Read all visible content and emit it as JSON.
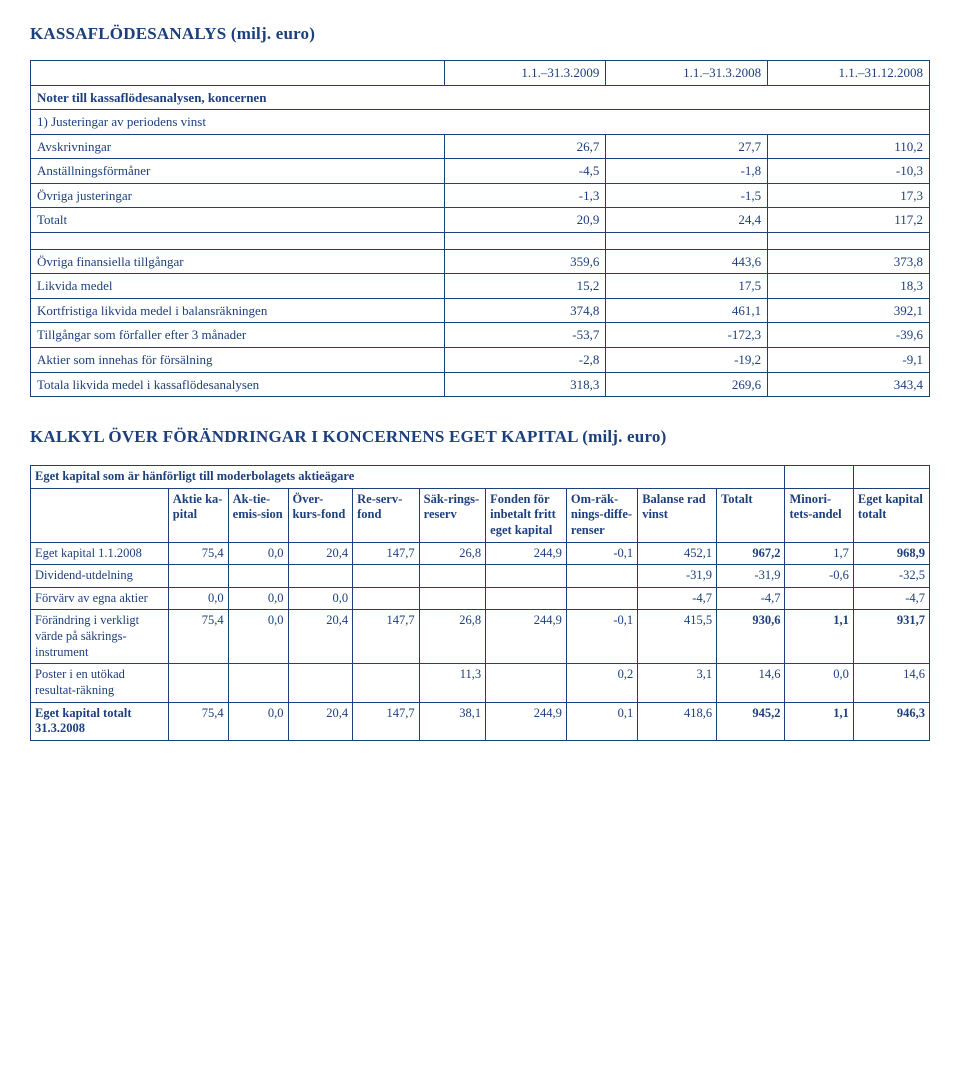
{
  "section1": {
    "title": "KASSAFLÖDESANALYS (milj. euro)",
    "col_headers": [
      "1.1.–31.3.2009",
      "1.1.–31.3.2008",
      "1.1.–31.12.2008"
    ],
    "noter": "Noter till kassaflödesanalysen, koncernen",
    "justeringar": "1) Justeringar av periodens vinst",
    "rows_top": [
      {
        "label": "Avskrivningar",
        "v": [
          "26,7",
          "27,7",
          "110,2"
        ],
        "bold": false
      },
      {
        "label": "Anställningsförmåner",
        "v": [
          "-4,5",
          "-1,8",
          "-10,3"
        ],
        "bold": false
      },
      {
        "label": "Övriga justeringar",
        "v": [
          "-1,3",
          "-1,5",
          "17,3"
        ],
        "bold": false
      },
      {
        "label": "Totalt",
        "v": [
          "20,9",
          "24,4",
          "117,2"
        ],
        "bold": false
      }
    ],
    "rows_bottom": [
      {
        "label": "Övriga finansiella tillgångar",
        "v": [
          "359,6",
          "443,6",
          "373,8"
        ],
        "bold": false
      },
      {
        "label": "Likvida medel",
        "v": [
          "15,2",
          "17,5",
          "18,3"
        ],
        "bold": false
      },
      {
        "label": "Kortfristiga likvida medel i balansräkningen",
        "v": [
          "374,8",
          "461,1",
          "392,1"
        ],
        "bold": false
      },
      {
        "label": "Tillgångar som förfaller efter 3 månader",
        "v": [
          "-53,7",
          "-172,3",
          "-39,6"
        ],
        "bold": false
      },
      {
        "label": "Aktier som innehas för försälning",
        "v": [
          "-2,8",
          "-19,2",
          "-9,1"
        ],
        "bold": false
      },
      {
        "label": "Totala likvida medel i kassaflödesanalysen",
        "v": [
          "318,3",
          "269,6",
          "343,4"
        ],
        "bold": false
      }
    ],
    "col_widths": [
      "46%",
      "18%",
      "18%",
      "18%"
    ]
  },
  "section2": {
    "title": "KALKYL ÖVER FÖRÄNDRINGAR I KONCERNENS EGET KAPITAL (milj. euro)",
    "banner": "Eget kapital som är hänförligt till moderbolagets aktieägare",
    "headers": [
      "",
      "Aktie ka-pital",
      "Ak-tie-emis-sion",
      "Över-kurs-fond",
      "Re-serv-fond",
      "Säk-rings-reserv",
      "Fonden för inbetalt fritt eget kapital",
      "Om-räk-nings-diffe-renser",
      "Balanse rad vinst",
      "Totalt",
      "Minori-tets-andel",
      "Eget kapital totalt"
    ],
    "rows": [
      {
        "label": "Eget kapital 1.1.2008",
        "v": [
          "75,4",
          "0,0",
          "20,4",
          "147,7",
          "26,8",
          "244,9",
          "-0,1",
          "452,1",
          "967,2",
          "1,7",
          "968,9"
        ],
        "bold_label": false,
        "bold_nums": [
          "967,2",
          "968,9"
        ]
      },
      {
        "label": "Dividend-utdelning",
        "v": [
          "",
          "",
          "",
          "",
          "",
          "",
          "",
          "-31,9",
          "-31,9",
          "-0,6",
          "-32,5"
        ],
        "bold_label": false
      },
      {
        "label": "Förvärv av egna aktier",
        "v": [
          "0,0",
          "0,0",
          "0,0",
          "",
          "",
          "",
          "",
          "-4,7",
          "-4,7",
          "",
          "-4,7"
        ],
        "bold_label": false
      },
      {
        "label": "Förändring i verkligt värde på säkrings-instrument",
        "v": [
          "75,4",
          "0,0",
          "20,4",
          "147,7",
          "26,8",
          "244,9",
          "-0,1",
          "415,5",
          "930,6",
          "1,1",
          "931,7"
        ],
        "bold_label": false,
        "bold_nums": [
          "930,6",
          "1,1",
          "931,7"
        ]
      },
      {
        "label": "Poster i en utökad resultat-räkning",
        "v": [
          "",
          "",
          "",
          "",
          "11,3",
          "",
          "0,2",
          "3,1",
          "14,6",
          "0,0",
          "14,6"
        ],
        "bold_label": false
      },
      {
        "label": "Eget kapital totalt 31.3.2008",
        "v": [
          "75,4",
          "0,0",
          "20,4",
          "147,7",
          "38,1",
          "244,9",
          "0,1",
          "418,6",
          "945,2",
          "1,1",
          "946,3"
        ],
        "bold_label": true,
        "bold_nums": [
          "945,2",
          "1,1",
          "946,3"
        ]
      }
    ],
    "col_widths": [
      "14.5%",
      "6.3%",
      "6.3%",
      "6.8%",
      "7%",
      "7%",
      "8.5%",
      "7.5%",
      "8.3%",
      "7.2%",
      "7.2%",
      "8%"
    ]
  },
  "colors": {
    "text": "#1c3f7d",
    "border": "#1c3f7d",
    "bg": "#ffffff"
  }
}
